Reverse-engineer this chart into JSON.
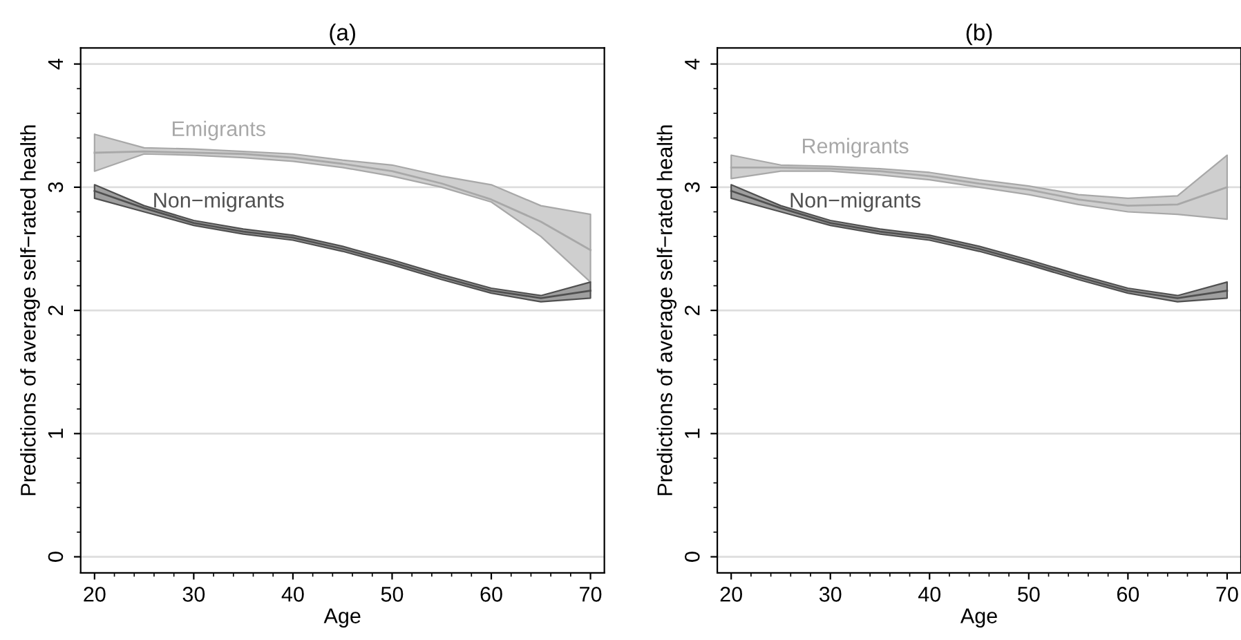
{
  "chart_data": [
    {
      "type": "line",
      "title": "(a)",
      "xlabel": "Age",
      "ylabel": "Predictions of average self−rated health",
      "x": [
        20,
        25,
        30,
        35,
        40,
        45,
        50,
        55,
        60,
        65,
        70
      ],
      "xlim": [
        18.6,
        71.4
      ],
      "xticks": [
        20,
        30,
        40,
        50,
        60,
        70
      ],
      "ylim": [
        -0.13,
        4.13
      ],
      "yticks": [
        0,
        1,
        2,
        3,
        4
      ],
      "grid": "y",
      "series": [
        {
          "name": "Emigrants",
          "color": "#a8a8a8",
          "values": [
            3.28,
            3.29,
            3.28,
            3.27,
            3.24,
            3.19,
            3.13,
            3.03,
            2.9,
            2.72,
            2.49
          ],
          "lower": [
            3.13,
            3.27,
            3.26,
            3.24,
            3.21,
            3.16,
            3.09,
            3.0,
            2.88,
            2.6,
            2.23
          ],
          "upper": [
            3.43,
            3.32,
            3.31,
            3.29,
            3.27,
            3.22,
            3.18,
            3.09,
            3.02,
            2.85,
            2.78
          ]
        },
        {
          "name": "Non−migrants",
          "color": "#505050",
          "values": [
            2.97,
            2.83,
            2.71,
            2.64,
            2.59,
            2.5,
            2.39,
            2.27,
            2.16,
            2.1,
            2.16
          ],
          "lower": [
            2.91,
            2.8,
            2.69,
            2.62,
            2.57,
            2.48,
            2.37,
            2.25,
            2.14,
            2.07,
            2.1
          ],
          "upper": [
            3.02,
            2.85,
            2.73,
            2.66,
            2.61,
            2.52,
            2.41,
            2.29,
            2.18,
            2.12,
            2.23
          ]
        }
      ]
    },
    {
      "type": "line",
      "title": "(b)",
      "xlabel": "Age",
      "ylabel": "Predictions of average self−rated health",
      "x": [
        20,
        25,
        30,
        35,
        40,
        45,
        50,
        55,
        60,
        65,
        70
      ],
      "xlim": [
        18.6,
        71.4
      ],
      "xticks": [
        20,
        30,
        40,
        50,
        60,
        70
      ],
      "ylim": [
        -0.13,
        4.13
      ],
      "yticks": [
        0,
        1,
        2,
        3,
        4
      ],
      "grid": "y",
      "series": [
        {
          "name": "Remigrants",
          "color": "#a8a8a8",
          "values": [
            3.16,
            3.16,
            3.15,
            3.13,
            3.09,
            3.03,
            2.98,
            2.9,
            2.85,
            2.86,
            3.0
          ],
          "lower": [
            3.07,
            3.13,
            3.13,
            3.1,
            3.06,
            3.0,
            2.94,
            2.86,
            2.8,
            2.78,
            2.74
          ],
          "upper": [
            3.26,
            3.18,
            3.17,
            3.15,
            3.12,
            3.06,
            3.01,
            2.94,
            2.91,
            2.93,
            3.26
          ]
        },
        {
          "name": "Non−migrants",
          "color": "#505050",
          "values": [
            2.97,
            2.83,
            2.71,
            2.64,
            2.59,
            2.5,
            2.39,
            2.27,
            2.16,
            2.1,
            2.16
          ],
          "lower": [
            2.91,
            2.8,
            2.69,
            2.62,
            2.57,
            2.48,
            2.37,
            2.25,
            2.14,
            2.07,
            2.1
          ],
          "upper": [
            3.02,
            2.85,
            2.73,
            2.66,
            2.61,
            2.52,
            2.41,
            2.29,
            2.18,
            2.12,
            2.23
          ]
        }
      ]
    }
  ]
}
